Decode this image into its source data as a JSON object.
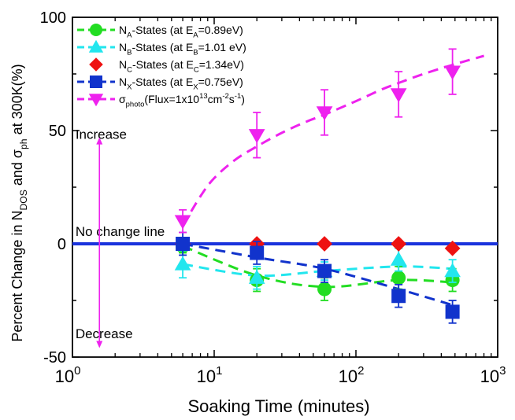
{
  "chart_data": {
    "type": "scatter",
    "title": "",
    "xlabel": "Soaking Time (minutes)",
    "ylabel": {
      "parts": [
        {
          "text": "Percent Change in N",
          "style": "normal"
        },
        {
          "text": "DOS",
          "style": "sub"
        },
        {
          "text": " and σ",
          "style": "normal"
        },
        {
          "text": "ph",
          "style": "sub"
        },
        {
          "text": " at 300K(%)",
          "style": "normal"
        }
      ]
    },
    "x_scale": "log",
    "xlim": [
      1,
      1000
    ],
    "ylim": [
      -50,
      100
    ],
    "x_ticks": [
      {
        "value": 1,
        "base": "10",
        "exp": "0"
      },
      {
        "value": 10,
        "base": "10",
        "exp": "1"
      },
      {
        "value": 100,
        "base": "10",
        "exp": "2"
      },
      {
        "value": 1000,
        "base": "10",
        "exp": "3"
      }
    ],
    "y_ticks": [
      {
        "value": -50,
        "label": "-50"
      },
      {
        "value": 0,
        "label": "0"
      },
      {
        "value": 50,
        "label": "50"
      },
      {
        "value": 100,
        "label": "100"
      }
    ],
    "grid": false,
    "legend": {
      "position": "top-left",
      "entries": [
        {
          "series": 0,
          "parts": [
            {
              "text": "N",
              "style": "normal"
            },
            {
              "text": "A",
              "style": "sub"
            },
            {
              "text": "-States (at E",
              "style": "normal"
            },
            {
              "text": "A",
              "style": "sub"
            },
            {
              "text": "=0.89eV)",
              "style": "normal"
            }
          ]
        },
        {
          "series": 1,
          "parts": [
            {
              "text": "N",
              "style": "normal"
            },
            {
              "text": "B",
              "style": "sub"
            },
            {
              "text": "-States (at E",
              "style": "normal"
            },
            {
              "text": "B",
              "style": "sub"
            },
            {
              "text": "=1.01 eV)",
              "style": "normal"
            }
          ]
        },
        {
          "series": 2,
          "parts": [
            {
              "text": "N",
              "style": "normal"
            },
            {
              "text": "C",
              "style": "sub"
            },
            {
              "text": "-States (at E",
              "style": "normal"
            },
            {
              "text": "C",
              "style": "sub"
            },
            {
              "text": "=1.34eV)",
              "style": "normal"
            }
          ]
        },
        {
          "series": 3,
          "parts": [
            {
              "text": "N",
              "style": "normal"
            },
            {
              "text": "X",
              "style": "sub"
            },
            {
              "text": "-States (at E",
              "style": "normal"
            },
            {
              "text": "X",
              "style": "sub"
            },
            {
              "text": "=0.75eV)",
              "style": "normal"
            }
          ]
        },
        {
          "series": 4,
          "parts": [
            {
              "text": "σ",
              "style": "normal"
            },
            {
              "text": "photo",
              "style": "sub"
            },
            {
              "text": "(Flux=1x10",
              "style": "normal"
            },
            {
              "text": "13",
              "style": "sup"
            },
            {
              "text": "cm",
              "style": "normal"
            },
            {
              "text": "-2",
              "style": "sup"
            },
            {
              "text": "s",
              "style": "normal"
            },
            {
              "text": "-1",
              "style": "sup"
            },
            {
              "text": ")",
              "style": "normal"
            }
          ]
        }
      ]
    },
    "series": [
      {
        "marker": "circle",
        "color": "#22dd22",
        "dashed": true,
        "x": [
          6,
          20,
          60,
          200,
          480
        ],
        "y": [
          -1,
          -16,
          -20,
          -15,
          -16
        ],
        "err": [
          3,
          5,
          5,
          5,
          5
        ]
      },
      {
        "marker": "triangle-up",
        "color": "#22e6ee",
        "dashed": true,
        "x": [
          6,
          20,
          60,
          200,
          480
        ],
        "y": [
          -9,
          -15,
          -12,
          -7,
          -12
        ],
        "err": [
          6,
          5,
          4,
          5,
          5
        ]
      },
      {
        "marker": "diamond",
        "color": "#ee1111",
        "dashed": false,
        "x": [
          6,
          20,
          60,
          200,
          480
        ],
        "y": [
          0,
          0,
          0,
          0,
          -2
        ],
        "err": [
          0,
          0,
          0,
          0,
          0
        ]
      },
      {
        "marker": "square",
        "color": "#1133cc",
        "dashed": true,
        "x": [
          6,
          20,
          60,
          200,
          480
        ],
        "y": [
          0,
          -4,
          -12,
          -23,
          -30
        ],
        "err": [
          5,
          5,
          5,
          5,
          5
        ]
      },
      {
        "marker": "triangle-down",
        "color": "#ee22ee",
        "dashed": true,
        "x": [
          6,
          20,
          60,
          200,
          480
        ],
        "y": [
          10,
          48,
          58,
          66,
          76
        ],
        "err": [
          5,
          10,
          10,
          10,
          10
        ]
      }
    ],
    "fit_curves": [
      {
        "series": 0,
        "color": "#22dd22",
        "x": [
          6,
          20,
          60,
          200,
          480
        ],
        "y": [
          -1,
          -14,
          -19,
          -16,
          -17
        ]
      },
      {
        "series": 1,
        "color": "#22e6ee",
        "x": [
          6,
          20,
          60,
          200,
          480
        ],
        "y": [
          -9,
          -14,
          -12,
          -10,
          -11
        ]
      },
      {
        "series": 3,
        "color": "#1133cc",
        "x": [
          6,
          20,
          60,
          200,
          480
        ],
        "y": [
          0,
          -6,
          -11,
          -20,
          -27
        ]
      },
      {
        "series": 4,
        "color": "#ee22ee",
        "x": [
          6,
          8,
          10,
          14,
          20,
          30,
          45,
          60,
          100,
          150,
          200,
          300,
          480,
          800
        ],
        "y": [
          8,
          21,
          29,
          37,
          43,
          49,
          54,
          57,
          63,
          68,
          71,
          75,
          79,
          83
        ]
      }
    ],
    "reference_line": {
      "y": 0,
      "x": [
        1,
        1000
      ],
      "color": "#1a33dd"
    },
    "annotations": {
      "no_change": {
        "text": "No change line",
        "x": 1.05,
        "y": 2
      },
      "increase": {
        "text": "Increase",
        "x": 1.05,
        "y": 45
      },
      "decrease": {
        "text": "Decrease",
        "x": 1.05,
        "y": -43
      },
      "arrow": {
        "x": 1.55,
        "y_from": -46,
        "y_to": 47,
        "color": "#ee22ee"
      }
    }
  }
}
